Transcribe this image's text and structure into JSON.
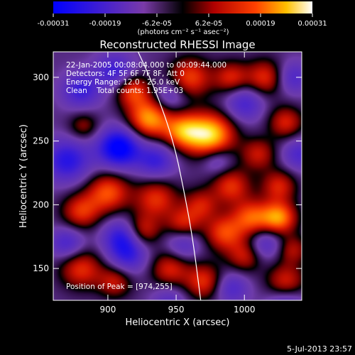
{
  "chart_data": {
    "type": "heatmap",
    "title": "Reconstructed RHESSI Image",
    "annotations": {
      "time_range": "22-Jan-2005 00:08:04.000 to 00:09:44.000",
      "detectors": "Detectors: 4F 5F 6F 7F 8F, Att 0",
      "energy_range": "Energy Range: 12.0 - 25.0 keV",
      "clean": "Clean    Total counts: 1.95E+03",
      "peak_position": "Position of Peak = [974,255]"
    },
    "xlabel": "Heliocentric X (arcsec)",
    "ylabel": "Heliocentric Y (arcsec)",
    "xlim": [
      860,
      1042
    ],
    "ylim": [
      125,
      320
    ],
    "x_ticks": [
      900,
      950,
      1000
    ],
    "y_ticks": [
      150,
      200,
      250,
      300
    ],
    "colorbar": {
      "label": "(photons cm⁻² s⁻¹ asec⁻²)",
      "range": [
        -0.00031,
        0.00031
      ],
      "tick_labels": [
        "-0.00031",
        "-0.00019",
        "-6.2e-05",
        "6.2e-05",
        "0.00019",
        "0.00031"
      ]
    },
    "peak": {
      "x": 974,
      "y": 255
    },
    "limb_curve": [
      [
        920,
        325
      ],
      [
        935,
        290
      ],
      [
        948,
        250
      ],
      [
        955,
        215
      ],
      [
        962,
        175
      ],
      [
        968,
        125
      ]
    ],
    "blobs": [
      [
        975,
        255,
        1.0,
        12
      ],
      [
        955,
        258,
        0.75,
        10
      ],
      [
        930,
        268,
        0.85,
        11
      ],
      [
        918,
        290,
        0.6,
        9
      ],
      [
        960,
        300,
        0.6,
        11
      ],
      [
        990,
        300,
        0.5,
        9
      ],
      [
        1015,
        300,
        0.55,
        10
      ],
      [
        1030,
        265,
        0.5,
        9
      ],
      [
        1010,
        240,
        0.45,
        9
      ],
      [
        990,
        215,
        0.55,
        10
      ],
      [
        1025,
        215,
        0.5,
        9
      ],
      [
        1005,
        190,
        0.65,
        10
      ],
      [
        1025,
        190,
        0.8,
        9
      ],
      [
        900,
        210,
        0.65,
        11
      ],
      [
        880,
        195,
        0.55,
        10
      ],
      [
        935,
        205,
        0.55,
        11
      ],
      [
        955,
        185,
        0.5,
        9
      ],
      [
        925,
        180,
        0.5,
        9
      ],
      [
        985,
        178,
        0.6,
        10
      ],
      [
        880,
        150,
        0.55,
        11
      ],
      [
        905,
        140,
        0.45,
        9
      ],
      [
        945,
        150,
        0.5,
        10
      ],
      [
        970,
        140,
        0.55,
        10
      ],
      [
        1000,
        160,
        0.45,
        9
      ],
      [
        1030,
        140,
        0.5,
        10
      ],
      [
        1035,
        165,
        0.4,
        8
      ],
      [
        882,
        262,
        0.35,
        8
      ],
      [
        968,
        200,
        0.45,
        9
      ],
      [
        910,
        175,
        -0.55,
        10
      ],
      [
        870,
        235,
        -0.6,
        12
      ],
      [
        908,
        245,
        -0.9,
        11
      ],
      [
        935,
        235,
        -0.5,
        10
      ],
      [
        880,
        290,
        -0.5,
        10
      ],
      [
        905,
        305,
        -0.5,
        10
      ],
      [
        945,
        285,
        -0.35,
        9
      ],
      [
        1000,
        280,
        -0.45,
        10
      ],
      [
        1035,
        300,
        -0.4,
        9
      ],
      [
        980,
        235,
        -0.35,
        8
      ],
      [
        1040,
        240,
        -0.4,
        9
      ],
      [
        955,
        170,
        -0.4,
        9
      ],
      [
        915,
        160,
        -0.45,
        10
      ],
      [
        1015,
        170,
        -0.4,
        9
      ],
      [
        1030,
        120,
        -0.45,
        10
      ],
      [
        990,
        135,
        -0.4,
        9
      ],
      [
        870,
        170,
        -0.45,
        9
      ],
      [
        945,
        125,
        -0.3,
        9
      ]
    ]
  },
  "footer": {
    "date": "5-Jul-2013 23:57"
  }
}
